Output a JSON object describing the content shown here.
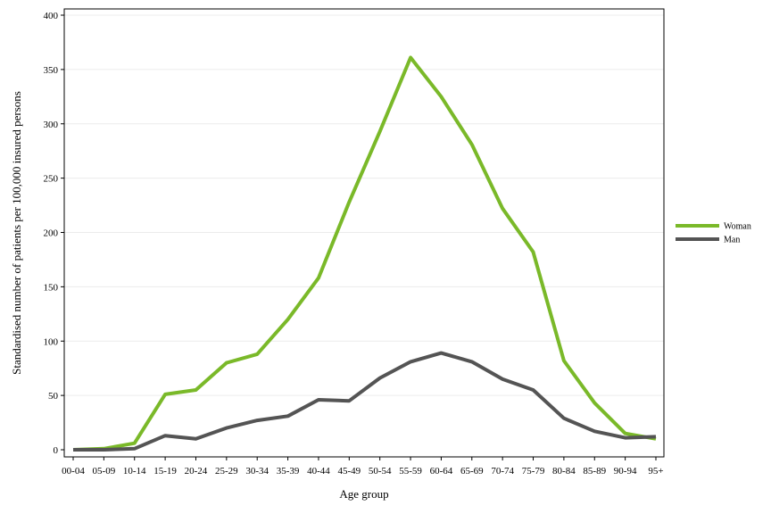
{
  "chart_data": {
    "type": "line",
    "title": "",
    "xlabel": "Age group",
    "ylabel": "Standardised number of patients per 100,000 insured persons",
    "categories": [
      "00-04",
      "05-09",
      "10-14",
      "15-19",
      "20-24",
      "25-29",
      "30-34",
      "35-39",
      "40-44",
      "45-49",
      "50-54",
      "55-59",
      "60-64",
      "65-69",
      "70-74",
      "75-79",
      "80-84",
      "85-89",
      "90-94",
      "95+"
    ],
    "ylim": [
      0,
      400
    ],
    "yticks": [
      0,
      50,
      100,
      150,
      200,
      250,
      300,
      350,
      400
    ],
    "grid": true,
    "legend_position": "right",
    "series": [
      {
        "name": "Woman",
        "color": "#7ab929",
        "values": [
          0,
          1,
          6,
          51,
          55,
          80,
          88,
          120,
          158,
          228,
          293,
          361,
          325,
          281,
          222,
          182,
          82,
          43,
          15,
          10
        ]
      },
      {
        "name": "Man",
        "color": "#545454",
        "values": [
          0,
          0,
          1,
          13,
          10,
          20,
          27,
          31,
          46,
          45,
          66,
          81,
          89,
          81,
          65,
          55,
          29,
          17,
          11,
          12
        ]
      }
    ]
  }
}
